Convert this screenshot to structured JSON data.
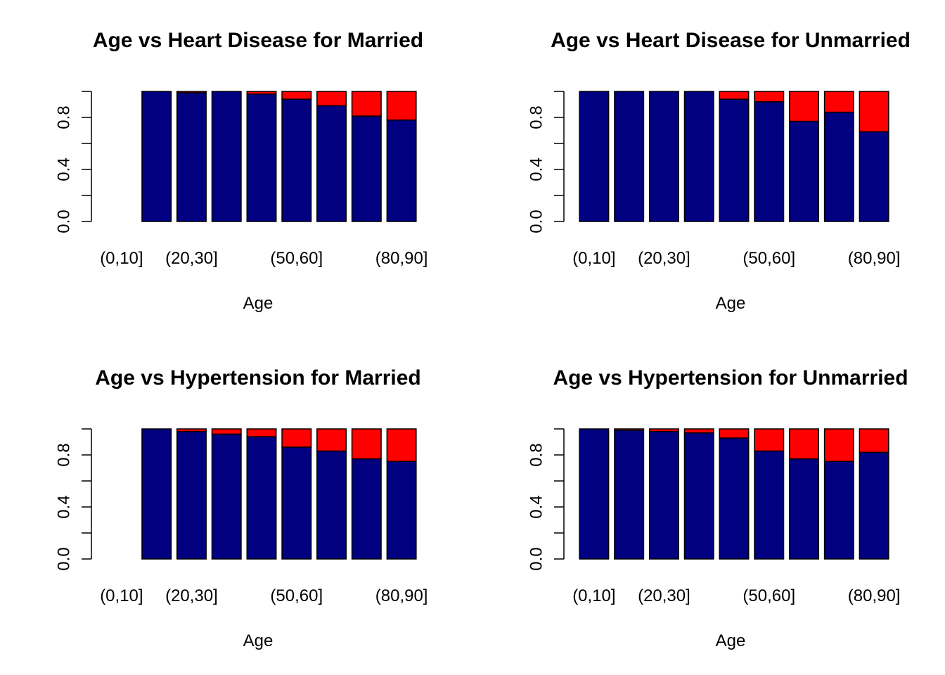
{
  "chart_data": [
    {
      "type": "bar",
      "stacked": true,
      "title": "Age vs Heart Disease for Married",
      "xlabel": "Age",
      "ylabel": "",
      "ylim": [
        0,
        1
      ],
      "yticks": [
        0.0,
        0.4,
        0.8
      ],
      "ytick_labels": [
        "0.0",
        "0.4",
        "0.8"
      ],
      "categories": [
        "(0,10]",
        "(10,20]",
        "(20,30]",
        "(30,40]",
        "(40,50]",
        "(50,60]",
        "(60,70]",
        "(70,80]",
        "(80,90]"
      ],
      "shown_xtick_labels": [
        "(0,10]",
        "(20,30]",
        "(50,60]",
        "(80,90]"
      ],
      "series": [
        {
          "color": "#000080",
          "values": [
            0,
            1.0,
            0.99,
            1.0,
            0.98,
            0.94,
            0.89,
            0.81,
            0.78
          ]
        },
        {
          "color": "#ff0000",
          "values": [
            0,
            0.0,
            0.01,
            0.0,
            0.02,
            0.06,
            0.11,
            0.19,
            0.22
          ]
        }
      ]
    },
    {
      "type": "bar",
      "stacked": true,
      "title": "Age vs Heart Disease for Unmarried",
      "xlabel": "Age",
      "ylabel": "",
      "ylim": [
        0,
        1
      ],
      "yticks": [
        0.0,
        0.4,
        0.8
      ],
      "ytick_labels": [
        "0.0",
        "0.4",
        "0.8"
      ],
      "categories": [
        "(0,10]",
        "(10,20]",
        "(20,30]",
        "(30,40]",
        "(40,50]",
        "(50,60]",
        "(60,70]",
        "(70,80]",
        "(80,90]"
      ],
      "shown_xtick_labels": [
        "(0,10]",
        "(20,30]",
        "(50,60]",
        "(80,90]"
      ],
      "series": [
        {
          "color": "#000080",
          "values": [
            1.0,
            1.0,
            1.0,
            1.0,
            0.94,
            0.92,
            0.77,
            0.84,
            0.69
          ]
        },
        {
          "color": "#ff0000",
          "values": [
            0.0,
            0.0,
            0.0,
            0.0,
            0.06,
            0.08,
            0.23,
            0.16,
            0.31
          ]
        }
      ]
    },
    {
      "type": "bar",
      "stacked": true,
      "title": "Age vs Hypertension for Married",
      "xlabel": "Age",
      "ylabel": "",
      "ylim": [
        0,
        1
      ],
      "yticks": [
        0.0,
        0.4,
        0.8
      ],
      "ytick_labels": [
        "0.0",
        "0.4",
        "0.8"
      ],
      "categories": [
        "(0,10]",
        "(10,20]",
        "(20,30]",
        "(30,40]",
        "(40,50]",
        "(50,60]",
        "(60,70]",
        "(70,80]",
        "(80,90]"
      ],
      "shown_xtick_labels": [
        "(0,10]",
        "(20,30]",
        "(50,60]",
        "(80,90]"
      ],
      "series": [
        {
          "color": "#000080",
          "values": [
            0,
            1.0,
            0.98,
            0.96,
            0.94,
            0.86,
            0.83,
            0.77,
            0.75
          ]
        },
        {
          "color": "#ff0000",
          "values": [
            0,
            0.0,
            0.02,
            0.04,
            0.06,
            0.14,
            0.17,
            0.23,
            0.25
          ]
        }
      ]
    },
    {
      "type": "bar",
      "stacked": true,
      "title": "Age vs Hypertension for Unmarried",
      "xlabel": "Age",
      "ylabel": "",
      "ylim": [
        0,
        1
      ],
      "yticks": [
        0.0,
        0.4,
        0.8
      ],
      "ytick_labels": [
        "0.0",
        "0.4",
        "0.8"
      ],
      "categories": [
        "(0,10]",
        "(10,20]",
        "(20,30]",
        "(30,40]",
        "(40,50]",
        "(50,60]",
        "(60,70]",
        "(70,80]",
        "(80,90]"
      ],
      "shown_xtick_labels": [
        "(0,10]",
        "(20,30]",
        "(50,60]",
        "(80,90]"
      ],
      "series": [
        {
          "color": "#000080",
          "values": [
            1.0,
            0.99,
            0.98,
            0.97,
            0.93,
            0.83,
            0.77,
            0.75,
            0.82
          ]
        },
        {
          "color": "#ff0000",
          "values": [
            0.0,
            0.01,
            0.02,
            0.03,
            0.07,
            0.17,
            0.23,
            0.25,
            0.18
          ]
        }
      ]
    }
  ]
}
